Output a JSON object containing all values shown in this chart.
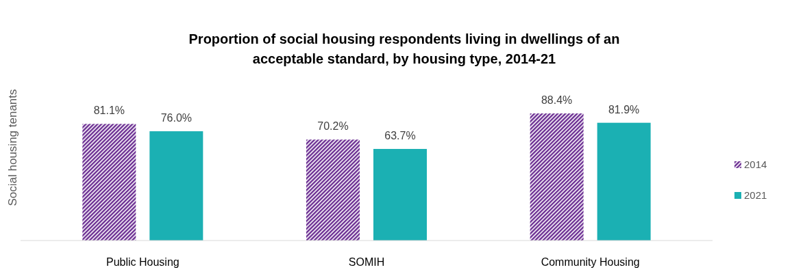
{
  "chart_data": {
    "type": "bar",
    "title": "Proportion of social housing respondents living in dwellings of an\nacceptable standard, by housing type, 2014-21",
    "ylabel": "Social housing tenants",
    "categories": [
      "Public Housing",
      "SOMIH",
      "Community Housing"
    ],
    "series": [
      {
        "name": "2014",
        "color": "#6a2c91",
        "values": [
          81.1,
          70.2,
          88.4
        ],
        "value_labels": [
          "81.1%",
          "70.2%",
          "88.4%"
        ]
      },
      {
        "name": "2021",
        "color": "#1bb0b3",
        "values": [
          76.0,
          63.7,
          81.9
        ],
        "value_labels": [
          "76.0%",
          "63.7%",
          "81.9%"
        ]
      }
    ],
    "legend": "right"
  }
}
